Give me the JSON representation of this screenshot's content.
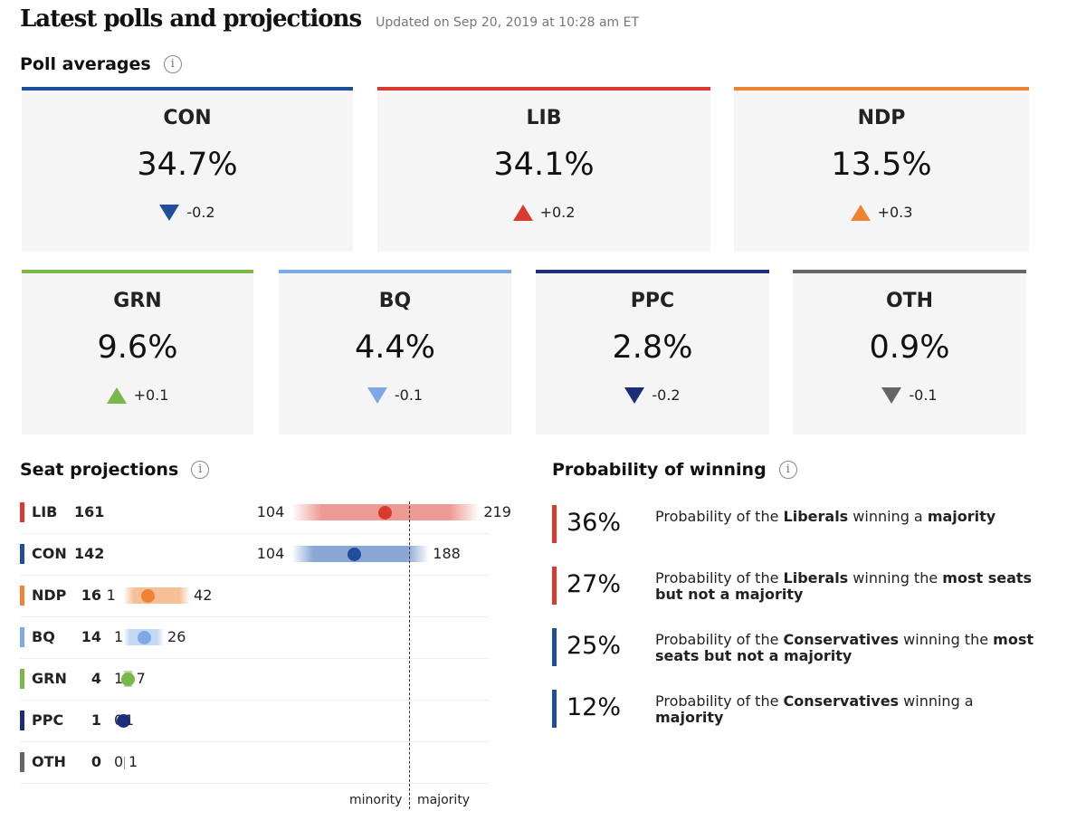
{
  "header": {
    "title": "Latest polls and projections",
    "updated": "Updated on Sep 20, 2019 at 10:28 am ET"
  },
  "poll_averages": {
    "title": "Poll averages",
    "info": "i",
    "cards": [
      {
        "party": "CON",
        "pct": "34.7%",
        "change": "-0.2",
        "dir": "down",
        "color": "#1f4e9a"
      },
      {
        "party": "LIB",
        "pct": "34.1%",
        "change": "+0.2",
        "dir": "up",
        "color": "#d9392e"
      },
      {
        "party": "NDP",
        "pct": "13.5%",
        "change": "+0.3",
        "dir": "up",
        "color": "#ee8433"
      },
      {
        "party": "GRN",
        "pct": "9.6%",
        "change": "+0.1",
        "dir": "up",
        "color": "#7ab648"
      },
      {
        "party": "BQ",
        "pct": "4.4%",
        "change": "-0.1",
        "dir": "down",
        "color": "#7fa9e6"
      },
      {
        "party": "PPC",
        "pct": "2.8%",
        "change": "-0.2",
        "dir": "down",
        "color": "#1d2d7a"
      },
      {
        "party": "OTH",
        "pct": "0.9%",
        "change": "-0.1",
        "dir": "down",
        "color": "#666666"
      }
    ]
  },
  "seat_projections": {
    "title": "Seat projections",
    "info": "i",
    "minority_label": "minority",
    "majority_label": "majority"
  },
  "probability": {
    "title": "Probability of winning",
    "info": "i",
    "rows": [
      {
        "pct": "36%",
        "color": "#d9392e",
        "parts": [
          [
            "Probability of the ",
            false
          ],
          [
            "Liberals",
            true
          ],
          [
            " winning a ",
            false
          ],
          [
            "majority",
            true
          ]
        ]
      },
      {
        "pct": "27%",
        "color": "#d9392e",
        "parts": [
          [
            "Probability of the ",
            false
          ],
          [
            "Liberals",
            true
          ],
          [
            " winning the ",
            false
          ],
          [
            "most seats but not a majority",
            true
          ]
        ]
      },
      {
        "pct": "25%",
        "color": "#1f4e9a",
        "parts": [
          [
            "Probability of the ",
            false
          ],
          [
            "Conservatives",
            true
          ],
          [
            " winning the ",
            false
          ],
          [
            "most seats but not a majority",
            true
          ]
        ]
      },
      {
        "pct": "12%",
        "color": "#1f4e9a",
        "parts": [
          [
            "Probability of the ",
            false
          ],
          [
            "Conservatives",
            true
          ],
          [
            " winning a ",
            false
          ],
          [
            "majority",
            true
          ]
        ]
      }
    ]
  },
  "chart_data": {
    "type": "scatter",
    "title": "Seat projections",
    "majority_threshold": 170,
    "series": [
      {
        "party": "LIB",
        "seats": 161,
        "low": 104,
        "high": 219,
        "color": "#d9392e",
        "bar_color": "#ee9a94"
      },
      {
        "party": "CON",
        "seats": 142,
        "low": 104,
        "high": 188,
        "color": "#1f4e9a",
        "bar_color": "#8aa6d4"
      },
      {
        "party": "NDP",
        "seats": 16,
        "low": 1,
        "high": 42,
        "color": "#ee8433",
        "bar_color": "#f6bf97"
      },
      {
        "party": "BQ",
        "seats": 14,
        "low": 1,
        "high": 26,
        "color": "#7fa9e6",
        "bar_color": "#c4d8f4"
      },
      {
        "party": "GRN",
        "seats": 4,
        "low": 1,
        "high": 7,
        "color": "#7ab648",
        "bar_color": "#bddba4"
      },
      {
        "party": "PPC",
        "seats": 1,
        "low": 0,
        "high": 1,
        "color": "#1d2d7a",
        "bar_color": "#8e96bd"
      },
      {
        "party": "OTH",
        "seats": 0,
        "low": 0,
        "high": 1,
        "color": "#666666",
        "bar_color": "#bbbbbb"
      }
    ]
  }
}
